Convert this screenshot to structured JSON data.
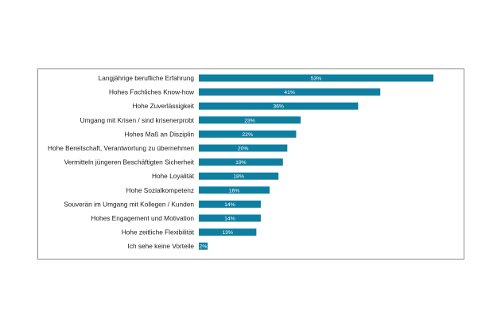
{
  "chart_data": {
    "type": "bar",
    "orientation": "horizontal",
    "categories": [
      "Langjährige berufliche Erfahrung",
      "Hohes Fachliches Know-how",
      "Hohe Zuverlässigkeit",
      "Umgang mit Krisen /  sind  krisenerprobt",
      "Hohes Maß an Disziplin",
      "Hohe Bereitschaft,  Verantwortung zu übernehmen",
      "Vermitteln jüngeren Beschäftigten Sicherheit",
      "Hohe Loyalität",
      "Hohe Sozialkompetenz",
      "Souverän  im Umgang mit Kollegen / Kunden",
      "Hohes Engagement und Motivation",
      "Hohe zeitliche Flexibilität",
      "Ich sehe keine Vorteile"
    ],
    "values": [
      53,
      41,
      36,
      23,
      22,
      20,
      19,
      18,
      16,
      14,
      14,
      13,
      2
    ],
    "value_labels": [
      "53%",
      "41%",
      "36%",
      "23%",
      "22%",
      "20%",
      "19%",
      "18%",
      "16%",
      "14%",
      "14%",
      "13%",
      "2%"
    ],
    "unit": "%",
    "bar_color": "#0e7fa0",
    "xlim": [
      0,
      53
    ],
    "grid": false,
    "legend": "none"
  }
}
